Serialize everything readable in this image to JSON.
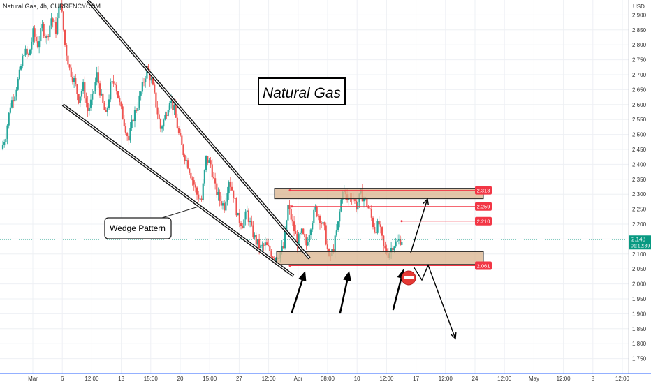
{
  "header": {
    "symbol_line": "Natural Gas, 4h, CURRENCYCOM"
  },
  "axis": {
    "unit": "USD"
  },
  "title_box": "Natural Gas",
  "callout": "Wedge Pattern",
  "last_price": {
    "value": "2.148",
    "countdown": "01:12:39"
  },
  "colors": {
    "up": "#26a69a",
    "down": "#ef5350",
    "zone_fill": "#d9b38c",
    "level": "#f23645",
    "price": "#089981",
    "grid": "#eef0f4",
    "border": "#2962ff"
  },
  "chart_data": {
    "type": "candlestick",
    "title": "Natural Gas",
    "timeframe": "4h",
    "source": "CURRENCYCOM",
    "ylim": [
      1.7,
      2.95
    ],
    "y_ticks": [
      "2.900",
      "2.850",
      "2.800",
      "2.750",
      "2.700",
      "2.650",
      "2.600",
      "2.550",
      "2.500",
      "2.450",
      "2.400",
      "2.350",
      "2.300",
      "2.250",
      "2.200",
      "2.150",
      "2.100",
      "2.050",
      "2.000",
      "1.950",
      "1.900",
      "1.850",
      "1.800",
      "1.750"
    ],
    "x_ticks": [
      "Mar",
      "6",
      "12:00",
      "13",
      "15:00",
      "20",
      "15:00",
      "27",
      "12:00",
      "Apr",
      "08:00",
      "10",
      "12:00",
      "17",
      "12:00",
      "24",
      "12:00",
      "May",
      "12:00",
      "8",
      "12:00"
    ],
    "close_path": [
      2.45,
      2.5,
      2.6,
      2.64,
      2.7,
      2.78,
      2.76,
      2.84,
      2.8,
      2.86,
      2.82,
      2.89,
      2.85,
      2.95,
      2.8,
      2.72,
      2.68,
      2.62,
      2.66,
      2.58,
      2.62,
      2.7,
      2.62,
      2.56,
      2.66,
      2.68,
      2.6,
      2.54,
      2.48,
      2.56,
      2.6,
      2.66,
      2.72,
      2.68,
      2.6,
      2.52,
      2.56,
      2.62,
      2.58,
      2.5,
      2.44,
      2.4,
      2.35,
      2.3,
      2.28,
      2.42,
      2.4,
      2.32,
      2.28,
      2.26,
      2.35,
      2.3,
      2.22,
      2.2,
      2.24,
      2.18,
      2.14,
      2.12,
      2.13,
      2.11,
      2.09,
      2.1,
      2.12,
      2.26,
      2.2,
      2.14,
      2.17,
      2.13,
      2.2,
      2.25,
      2.22,
      2.18,
      2.08,
      2.12,
      2.2,
      2.32,
      2.28,
      2.3,
      2.26,
      2.3,
      2.28,
      2.24,
      2.18,
      2.2,
      2.12,
      2.1,
      2.13,
      2.14,
      2.15
    ],
    "levels": [
      {
        "label": "2.313",
        "value": 2.313
      },
      {
        "label": "2.259",
        "value": 2.259
      },
      {
        "label": "2.210",
        "value": 2.21
      },
      {
        "label": "2.061",
        "value": 2.061
      }
    ],
    "zones": [
      [
        2.285,
        2.32
      ],
      [
        2.065,
        2.108
      ]
    ],
    "annotations": [
      "Natural Gas",
      "Wedge Pattern"
    ]
  }
}
